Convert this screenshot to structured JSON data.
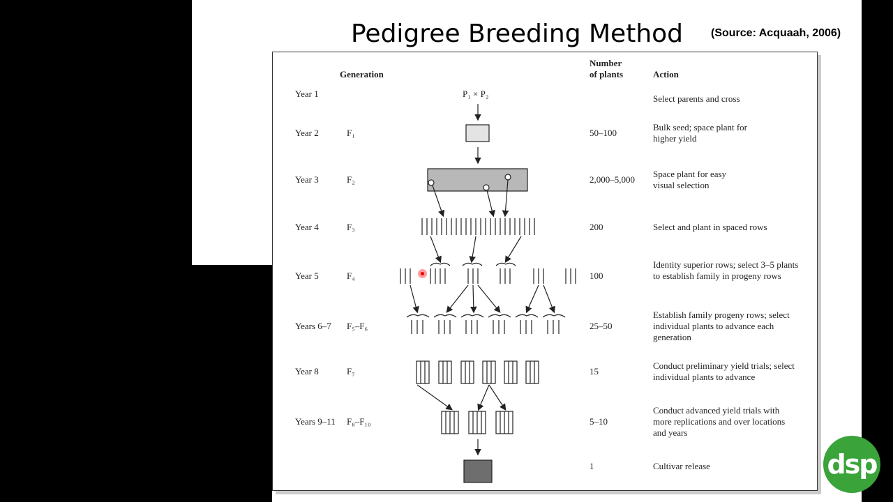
{
  "title": "Pedigree Breeding Method",
  "source": "(Source: Acquaah, 2006)",
  "headers": {
    "generation": "Generation",
    "number": "Number\nof plants",
    "action": "Action"
  },
  "cross_label": "P₁ × P₂",
  "rows": [
    {
      "year": "Year 1",
      "gen": "",
      "num": "",
      "action": "Select parents and cross"
    },
    {
      "year": "Year 2",
      "gen": "F₁",
      "num": "50–100",
      "action": "Bulk seed; space plant for higher yield"
    },
    {
      "year": "Year 3",
      "gen": "F₂",
      "num": "2,000–5,000",
      "action": "Space plant for easy visual selection"
    },
    {
      "year": "Year 4",
      "gen": "F₃",
      "num": "200",
      "action": "Select and plant in spaced rows"
    },
    {
      "year": "Year 5",
      "gen": "F₄",
      "num": "100",
      "action": "Identity superior rows; select 3–5 plants to establish family in progeny rows"
    },
    {
      "year": "Years 6–7",
      "gen": "F₅–F₆",
      "num": "25–50",
      "action": "Establish family progeny rows; select individual plants to advance each generation"
    },
    {
      "year": "Year 8",
      "gen": "F₇",
      "num": "15",
      "action": "Conduct preliminary yield trials; select individual plants to advance"
    },
    {
      "year": "Years 9–11",
      "gen": "F₈–F₁₀",
      "num": "5–10",
      "action": "Conduct advanced yield trials with more replications and over locations and years"
    },
    {
      "year": "",
      "gen": "",
      "num": "1",
      "action": "Cultivar release"
    }
  ],
  "logo_text": "dsp"
}
